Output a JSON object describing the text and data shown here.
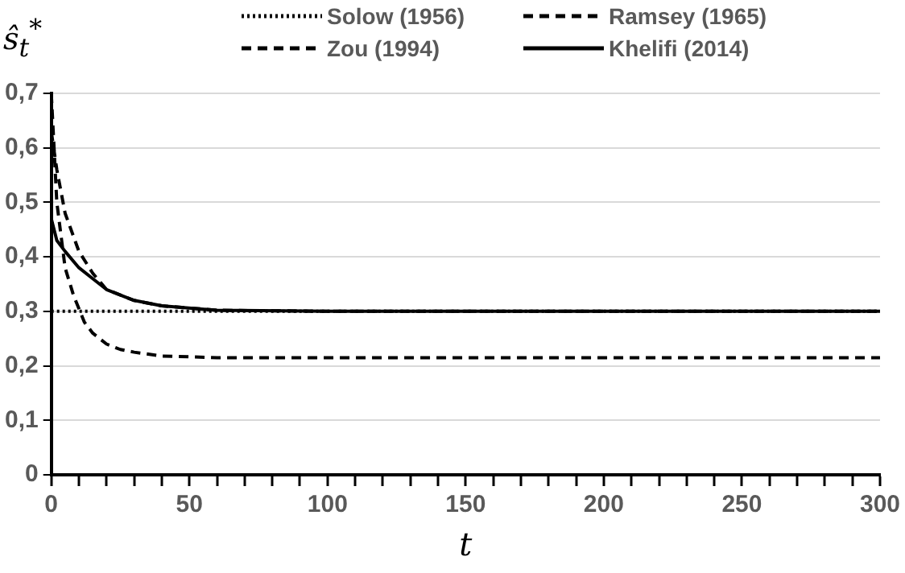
{
  "chart_data": {
    "type": "line",
    "xlabel": "t",
    "ylabel": "ŝ$_{t}$$^{*}$",
    "xlim": [
      0,
      300
    ],
    "xticks": [
      0,
      {
        "value": 10,
        "label": null
      },
      {
        "value": 20,
        "label": null
      },
      {
        "value": 30,
        "label": null
      },
      {
        "value": 40,
        "label": null
      },
      50,
      {
        "value": 60,
        "label": null
      },
      {
        "value": 70,
        "label": null
      },
      {
        "value": 80,
        "label": null
      },
      {
        "value": 90,
        "label": null
      },
      100,
      {
        "value": 110,
        "label": null
      },
      {
        "value": 120,
        "label": null
      },
      {
        "value": 130,
        "label": null
      },
      {
        "value": 140,
        "label": null
      },
      150,
      {
        "value": 160,
        "label": null
      },
      {
        "value": 170,
        "label": null
      },
      {
        "value": 180,
        "label": null
      },
      {
        "value": 190,
        "label": null
      },
      200,
      {
        "value": 210,
        "label": null
      },
      {
        "value": 220,
        "label": null
      },
      {
        "value": 230,
        "label": null
      },
      {
        "value": 240,
        "label": null
      },
      250,
      {
        "value": 260,
        "label": null
      },
      {
        "value": 270,
        "label": null
      },
      {
        "value": 280,
        "label": null
      },
      {
        "value": 290,
        "label": null
      },
      300
    ],
    "ylim": [
      0,
      0.7
    ],
    "yticks": [
      {
        "value": 0,
        "label": "0"
      },
      {
        "value": 0.1,
        "label": "0,1"
      },
      {
        "value": 0.2,
        "label": "0,2"
      },
      {
        "value": 0.3,
        "label": "0,3"
      },
      {
        "value": 0.4,
        "label": "0,4"
      },
      {
        "value": 0.5,
        "label": "0,5"
      },
      {
        "value": 0.6,
        "label": "0,6"
      },
      {
        "value": 0.7,
        "label": "0,7"
      }
    ],
    "grid": "y",
    "legend": "top",
    "marker": "none",
    "series": [
      {
        "name": "Solow (1956)",
        "color": "#000000",
        "line_style": "dotted",
        "x": [
          0,
          300
        ],
        "values": [
          0.3,
          0.3
        ]
      },
      {
        "name": "Ramsey (1965)",
        "color": "#000000",
        "line_style": "dashed",
        "x": [
          0,
          2,
          5,
          8,
          12,
          15,
          20,
          25,
          30,
          40,
          60,
          300
        ],
        "values": [
          0.7,
          0.5,
          0.38,
          0.33,
          0.28,
          0.26,
          0.24,
          0.23,
          0.225,
          0.218,
          0.215,
          0.215
        ]
      },
      {
        "name": "Zou (1994)",
        "color": "#000000",
        "line_style": "dashed",
        "x": [
          0,
          2,
          5,
          10,
          15,
          20,
          30,
          40,
          60,
          100,
          300
        ],
        "values": [
          0.63,
          0.56,
          0.48,
          0.41,
          0.37,
          0.34,
          0.32,
          0.31,
          0.302,
          0.3,
          0.3
        ]
      },
      {
        "name": "Khelifi (2014)",
        "color": "#000000",
        "line_style": "solid",
        "x": [
          0,
          2,
          5,
          10,
          15,
          20,
          30,
          40,
          60,
          100,
          300
        ],
        "values": [
          0.47,
          0.43,
          0.41,
          0.38,
          0.36,
          0.34,
          0.32,
          0.31,
          0.302,
          0.3,
          0.3
        ]
      }
    ]
  }
}
